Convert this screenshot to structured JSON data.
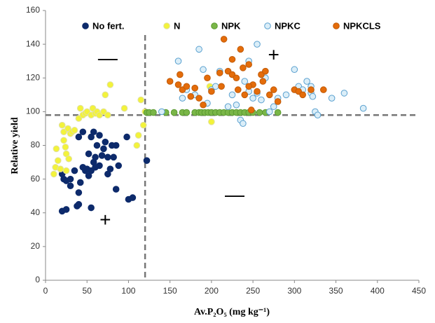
{
  "chart_data": {
    "type": "scatter",
    "xlabel": "Av.P₂O₅ (mg kg⁻¹)",
    "ylabel": "Relative yield",
    "xlim": [
      0,
      450
    ],
    "xticks": [
      0,
      50,
      100,
      150,
      200,
      250,
      300,
      350,
      400,
      450
    ],
    "ylim": [
      0,
      160
    ],
    "yticks": [
      0,
      20,
      40,
      60,
      80,
      100,
      120,
      140,
      160
    ],
    "grid": false,
    "legend": "top",
    "thresholds": {
      "x": 120,
      "y": 98
    },
    "annotations": [
      {
        "text": "—",
        "x": 75,
        "y": 131
      },
      {
        "text": "+",
        "x": 72,
        "y": 35
      },
      {
        "text": "+",
        "x": 275,
        "y": 133
      },
      {
        "text": "—",
        "x": 228,
        "y": 50
      }
    ],
    "series": [
      {
        "name": "No fert.",
        "color": "#0d2a6b",
        "edge": "#0d2a6b",
        "x": [
          20,
          25,
          22,
          20,
          25,
          30,
          35,
          38,
          40,
          40,
          42,
          45,
          48,
          50,
          52,
          55,
          58,
          60,
          55,
          58,
          62,
          65,
          68,
          70,
          72,
          75,
          78,
          80,
          85,
          85,
          88,
          98,
          100,
          105,
          122,
          40,
          45,
          60,
          52,
          30,
          65,
          75,
          55,
          82
        ],
        "values": [
          41,
          42,
          60,
          63,
          59,
          56,
          65,
          44,
          45,
          52,
          58,
          67,
          65,
          66,
          62,
          65,
          70,
          73,
          85,
          88,
          80,
          68,
          74,
          78,
          82,
          73,
          66,
          80,
          80,
          54,
          68,
          85,
          48,
          49,
          71,
          85,
          88,
          67,
          75,
          60,
          86,
          63,
          43,
          73
        ]
      },
      {
        "name": "N",
        "color": "#f3f33a",
        "edge": "#e0e0a0",
        "x": [
          10,
          12,
          13,
          15,
          18,
          20,
          22,
          22,
          24,
          25,
          25,
          27,
          28,
          30,
          32,
          35,
          40,
          42,
          45,
          48,
          50,
          55,
          57,
          60,
          62,
          65,
          70,
          72,
          75,
          78,
          95,
          110,
          112,
          115,
          118,
          120,
          198,
          200
        ],
        "values": [
          63,
          67,
          78,
          71,
          66,
          92,
          88,
          83,
          79,
          75,
          65,
          90,
          72,
          87,
          88,
          89,
          96,
          102,
          98,
          99,
          100,
          98,
          102,
          99,
          100,
          98,
          100,
          110,
          98,
          116,
          102,
          80,
          86,
          107,
          92,
          100,
          115,
          94
        ]
      },
      {
        "name": "NPK",
        "color": "#7ab648",
        "edge": "#5a9a30",
        "x": [
          122,
          125,
          130,
          145,
          155,
          165,
          170,
          180,
          185,
          188,
          192,
          196,
          200,
          205,
          210,
          215,
          220,
          225,
          230,
          235,
          240,
          245,
          250,
          258,
          265,
          280
        ],
        "values": [
          99.5,
          99.5,
          99.5,
          99.5,
          99.5,
          99.5,
          99.5,
          99.5,
          99.5,
          99.5,
          99.5,
          99.5,
          99.5,
          99.5,
          99.5,
          99.5,
          99.5,
          99.5,
          99.5,
          99.5,
          99.5,
          99.5,
          99.5,
          99.5,
          99.5,
          99.5
        ]
      },
      {
        "name": "NPKC",
        "color": "#dbeef8",
        "edge": "#5aa0cf",
        "x": [
          140,
          160,
          165,
          170,
          180,
          185,
          190,
          195,
          200,
          205,
          210,
          220,
          225,
          230,
          235,
          238,
          240,
          245,
          250,
          255,
          260,
          265,
          270,
          275,
          280,
          290,
          300,
          305,
          310,
          315,
          320,
          322,
          325,
          328,
          345,
          360,
          383,
          245,
          255,
          320
        ],
        "values": [
          100,
          130,
          108,
          113,
          110,
          137,
          125,
          105,
          113,
          115,
          124,
          103,
          110,
          104,
          95,
          93,
          118,
          112,
          108,
          111,
          107,
          120,
          100,
          103,
          108,
          110,
          125,
          115,
          113,
          118,
          111,
          109,
          100,
          98,
          108,
          111,
          102,
          130,
          140,
          115
        ]
      },
      {
        "name": "NPKCLS",
        "color": "#e46c0a",
        "edge": "#c05a08",
        "x": [
          150,
          160,
          162,
          165,
          170,
          175,
          180,
          185,
          190,
          195,
          200,
          210,
          212,
          215,
          220,
          225,
          225,
          230,
          232,
          235,
          238,
          240,
          245,
          248,
          250,
          255,
          260,
          262,
          265,
          270,
          275,
          280,
          300,
          305,
          310,
          320,
          335,
          245
        ],
        "values": [
          118,
          116,
          122,
          113,
          115,
          109,
          114,
          108,
          104,
          120,
          112,
          123,
          115,
          143,
          124,
          122,
          131,
          120,
          113,
          137,
          126,
          110,
          128,
          101,
          116,
          112,
          122,
          118,
          124,
          110,
          113,
          106,
          113,
          112,
          110,
          113,
          113,
          115
        ]
      }
    ]
  }
}
